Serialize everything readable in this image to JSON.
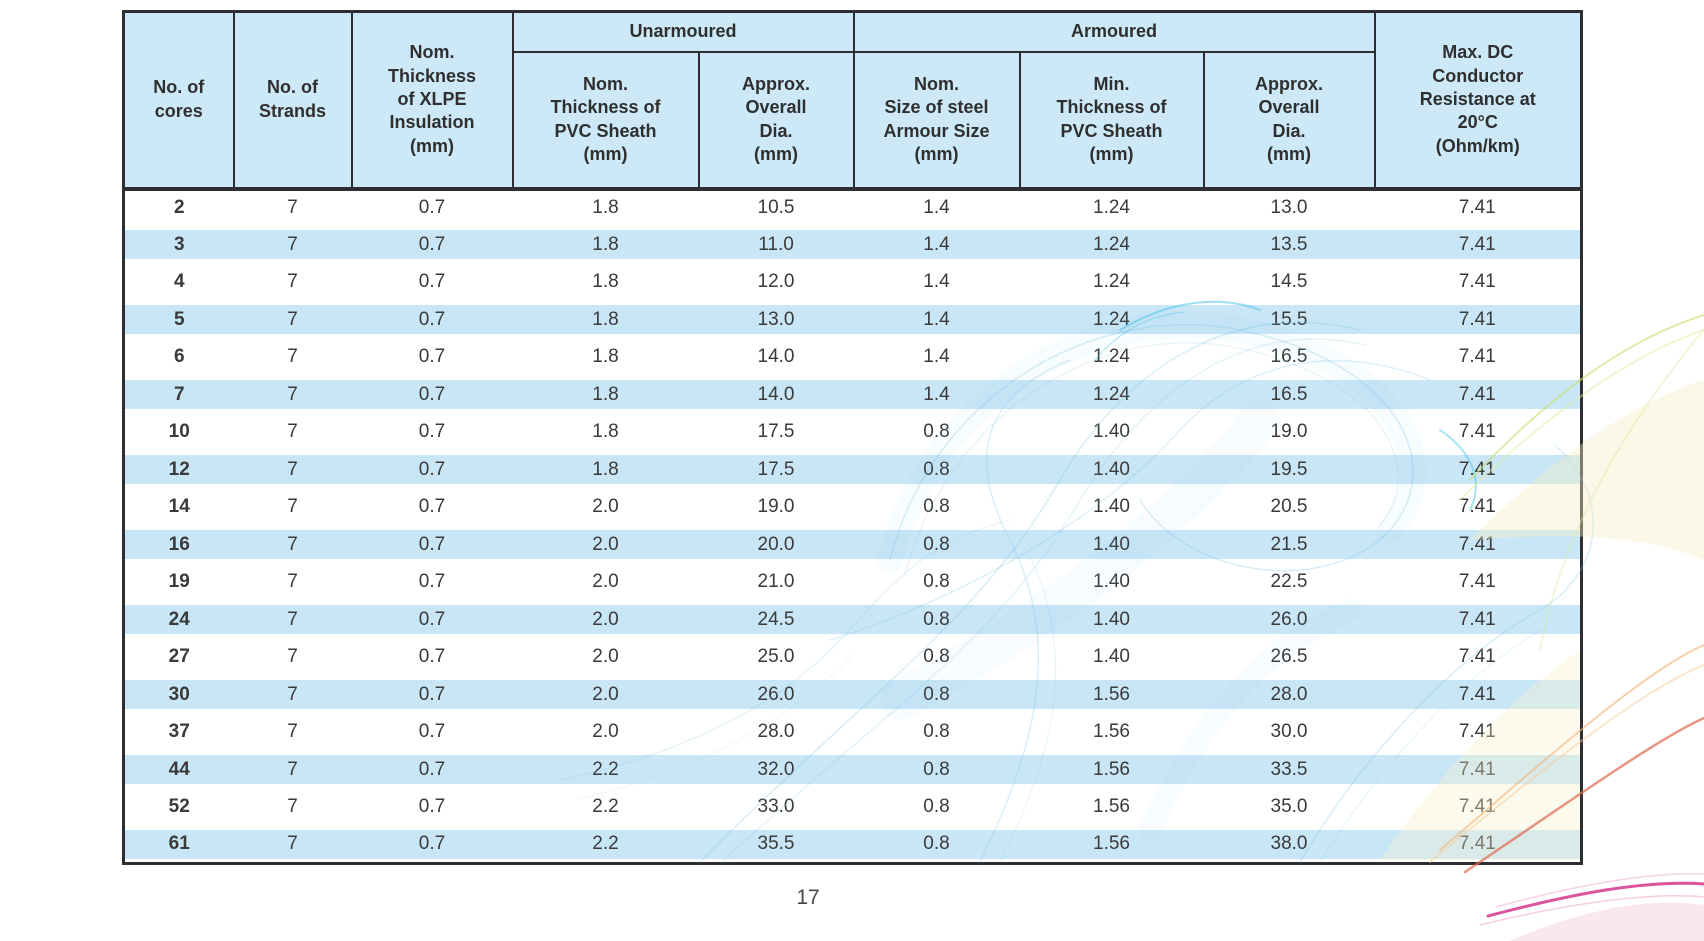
{
  "page": {
    "number": "17",
    "background_color": "#ffffff"
  },
  "colors": {
    "header_bg": "#cde9f8",
    "stripe_bg": "#c9e6f7",
    "border_color": "#2e2e32",
    "header_text": "#2f2f2f",
    "data_text": "#3a3a3a"
  },
  "decor": {
    "swirl_palette": [
      "#7cc5e8",
      "#3ec1e4",
      "#c8dd6e",
      "#f5eec2",
      "#f2b071",
      "#e06a4e",
      "#d5368b",
      "#f0a8cc"
    ]
  },
  "table": {
    "header": {
      "cores": "No. of\ncores",
      "strands": "No. of\nStrands",
      "xlpe": "Nom.\nThickness\nof XLPE\nInsulation\n(mm)",
      "unarmoured_group": "Unarmoured",
      "unarm_pvc": "Nom.\nThickness of\nPVC Sheath\n(mm)",
      "unarm_dia": "Approx.\nOverall\nDia.\n(mm)",
      "armoured_group": "Armoured",
      "arm_steel": "Nom.\nSize of steel\nArmour Size\n(mm)",
      "arm_pvc": "Min.\nThickness of\nPVC Sheath\n(mm)",
      "arm_dia": "Approx.\nOverall\nDia.\n(mm)",
      "resistance": "Max. DC\nConductor\nResistance at\n20°C\n(Ohm/km)"
    },
    "column_ids": [
      "no-of-cores",
      "no-of-strands",
      "xlpe-insulation-thickness-mm",
      "unarmoured-pvc-sheath-thickness-mm",
      "unarmoured-overall-dia-mm",
      "armour-steel-size-mm",
      "armoured-pvc-sheath-min-thickness-mm",
      "armoured-overall-dia-mm",
      "max-dc-resistance-ohm-per-km"
    ],
    "rows": [
      [
        "2",
        "7",
        "0.7",
        "1.8",
        "10.5",
        "1.4",
        "1.24",
        "13.0",
        "7.41"
      ],
      [
        "3",
        "7",
        "0.7",
        "1.8",
        "11.0",
        "1.4",
        "1.24",
        "13.5",
        "7.41"
      ],
      [
        "4",
        "7",
        "0.7",
        "1.8",
        "12.0",
        "1.4",
        "1.24",
        "14.5",
        "7.41"
      ],
      [
        "5",
        "7",
        "0.7",
        "1.8",
        "13.0",
        "1.4",
        "1.24",
        "15.5",
        "7.41"
      ],
      [
        "6",
        "7",
        "0.7",
        "1.8",
        "14.0",
        "1.4",
        "1.24",
        "16.5",
        "7.41"
      ],
      [
        "7",
        "7",
        "0.7",
        "1.8",
        "14.0",
        "1.4",
        "1.24",
        "16.5",
        "7.41"
      ],
      [
        "10",
        "7",
        "0.7",
        "1.8",
        "17.5",
        "0.8",
        "1.40",
        "19.0",
        "7.41"
      ],
      [
        "12",
        "7",
        "0.7",
        "1.8",
        "17.5",
        "0.8",
        "1.40",
        "19.5",
        "7.41"
      ],
      [
        "14",
        "7",
        "0.7",
        "2.0",
        "19.0",
        "0.8",
        "1.40",
        "20.5",
        "7.41"
      ],
      [
        "16",
        "7",
        "0.7",
        "2.0",
        "20.0",
        "0.8",
        "1.40",
        "21.5",
        "7.41"
      ],
      [
        "19",
        "7",
        "0.7",
        "2.0",
        "21.0",
        "0.8",
        "1.40",
        "22.5",
        "7.41"
      ],
      [
        "24",
        "7",
        "0.7",
        "2.0",
        "24.5",
        "0.8",
        "1.40",
        "26.0",
        "7.41"
      ],
      [
        "27",
        "7",
        "0.7",
        "2.0",
        "25.0",
        "0.8",
        "1.40",
        "26.5",
        "7.41"
      ],
      [
        "30",
        "7",
        "0.7",
        "2.0",
        "26.0",
        "0.8",
        "1.56",
        "28.0",
        "7.41"
      ],
      [
        "37",
        "7",
        "0.7",
        "2.0",
        "28.0",
        "0.8",
        "1.56",
        "30.0",
        "7.41"
      ],
      [
        "44",
        "7",
        "0.7",
        "2.2",
        "32.0",
        "0.8",
        "1.56",
        "33.5",
        "7.41"
      ],
      [
        "52",
        "7",
        "0.7",
        "2.2",
        "33.0",
        "0.8",
        "1.56",
        "35.0",
        "7.41"
      ],
      [
        "61",
        "7",
        "0.7",
        "2.2",
        "35.5",
        "0.8",
        "1.56",
        "38.0",
        "7.41"
      ]
    ]
  }
}
